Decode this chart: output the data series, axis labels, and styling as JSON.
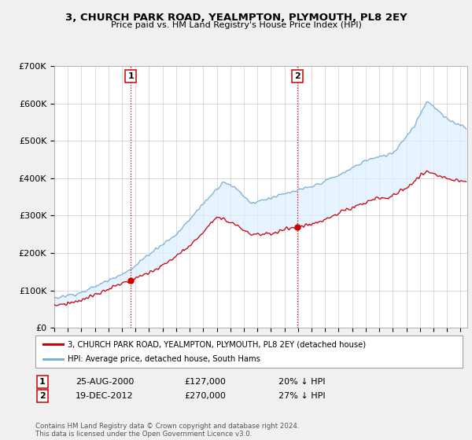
{
  "title": "3, CHURCH PARK ROAD, YEALMPTON, PLYMOUTH, PL8 2EY",
  "subtitle": "Price paid vs. HM Land Registry's House Price Index (HPI)",
  "legend_line1": "3, CHURCH PARK ROAD, YEALMPTON, PLYMOUTH, PL8 2EY (detached house)",
  "legend_line2": "HPI: Average price, detached house, South Hams",
  "transaction1_date": "25-AUG-2000",
  "transaction1_price": "£127,000",
  "transaction1_hpi": "20% ↓ HPI",
  "transaction2_date": "19-DEC-2012",
  "transaction2_price": "£270,000",
  "transaction2_hpi": "27% ↓ HPI",
  "footnote": "Contains HM Land Registry data © Crown copyright and database right 2024.\nThis data is licensed under the Open Government Licence v3.0.",
  "ylim": [
    0,
    700000
  ],
  "yticks": [
    0,
    100000,
    200000,
    300000,
    400000,
    500000,
    600000,
    700000
  ],
  "ytick_labels": [
    "£0",
    "£100K",
    "£200K",
    "£300K",
    "£400K",
    "£500K",
    "£600K",
    "£700K"
  ],
  "background_color": "#f0f0f0",
  "plot_bg_color": "#ffffff",
  "hpi_color": "#7bafd4",
  "hpi_fill_color": "#ddeeff",
  "price_color": "#cc0000",
  "vline_color": "#cc0000",
  "transaction1_x": 2000.646,
  "transaction2_x": 2012.964,
  "transaction1_y": 127000,
  "transaction2_y": 270000,
  "xmin": 1995.0,
  "xmax": 2025.5
}
